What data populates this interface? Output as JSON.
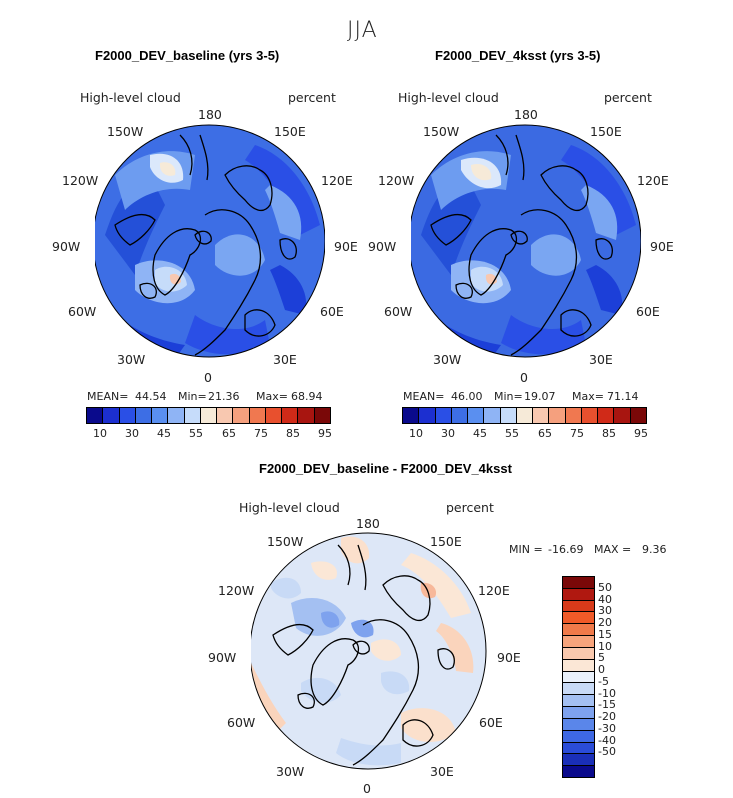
{
  "figure": {
    "season": "JJA"
  },
  "panels": [
    {
      "title": "F2000_DEV_baseline (yrs 3-5)",
      "variable": "High-level cloud",
      "units": "percent",
      "mean_label": "MEAN=",
      "mean": "44.54",
      "min_label": "Min=",
      "min": "21.36",
      "max_label": "Max=",
      "max": "68.94",
      "base_color": "#3d6ee5"
    },
    {
      "title": "F2000_DEV_4ksst (yrs 3-5)",
      "variable": "High-level cloud",
      "units": "percent",
      "mean_label": "MEAN=",
      "mean": "46.00",
      "min_label": "Min=",
      "min": "19.07",
      "max_label": "Max=",
      "max": "71.14",
      "base_color": "#3b6ae2"
    }
  ],
  "lon_labels": [
    "180",
    "150E",
    "120E",
    "90E",
    "60E",
    "30E",
    "0",
    "30W",
    "60W",
    "90W",
    "120W",
    "150W"
  ],
  "colorbar_main": {
    "colors": [
      "#0a0a8c",
      "#1c2fd0",
      "#2a4fe6",
      "#3d6ee5",
      "#5a8ff0",
      "#8fb4f5",
      "#c6dcfa",
      "#f6ead8",
      "#f8c8b0",
      "#f5a07e",
      "#f07850",
      "#e8502e",
      "#d02a18",
      "#a81510",
      "#7a0808"
    ],
    "tick_labels": [
      "10",
      "30",
      "45",
      "55",
      "65",
      "75",
      "85",
      "95"
    ]
  },
  "diff": {
    "title": "F2000_DEV_baseline - F2000_DEV_4ksst",
    "variable": "High-level cloud",
    "units": "percent",
    "min_label": "MIN =",
    "min": "-16.69",
    "max_label": "MAX =",
    "max": "9.36",
    "base_color": "#dde7f7",
    "colors": [
      "#7a0808",
      "#b01810",
      "#d83a1a",
      "#f05a28",
      "#f07a4a",
      "#f7a47c",
      "#fac9ae",
      "#fbe7d6",
      "#eaf1fb",
      "#c8daf6",
      "#a4c0f2",
      "#7ea2ee",
      "#5a86ea",
      "#3e68e4",
      "#2a4cd8",
      "#1a2fb8",
      "#0a0a8c"
    ],
    "tick_labels": [
      "50",
      "40",
      "30",
      "20",
      "15",
      "10",
      "5",
      "0",
      "-5",
      "-10",
      "-15",
      "-20",
      "-30",
      "-40",
      "-50"
    ]
  }
}
